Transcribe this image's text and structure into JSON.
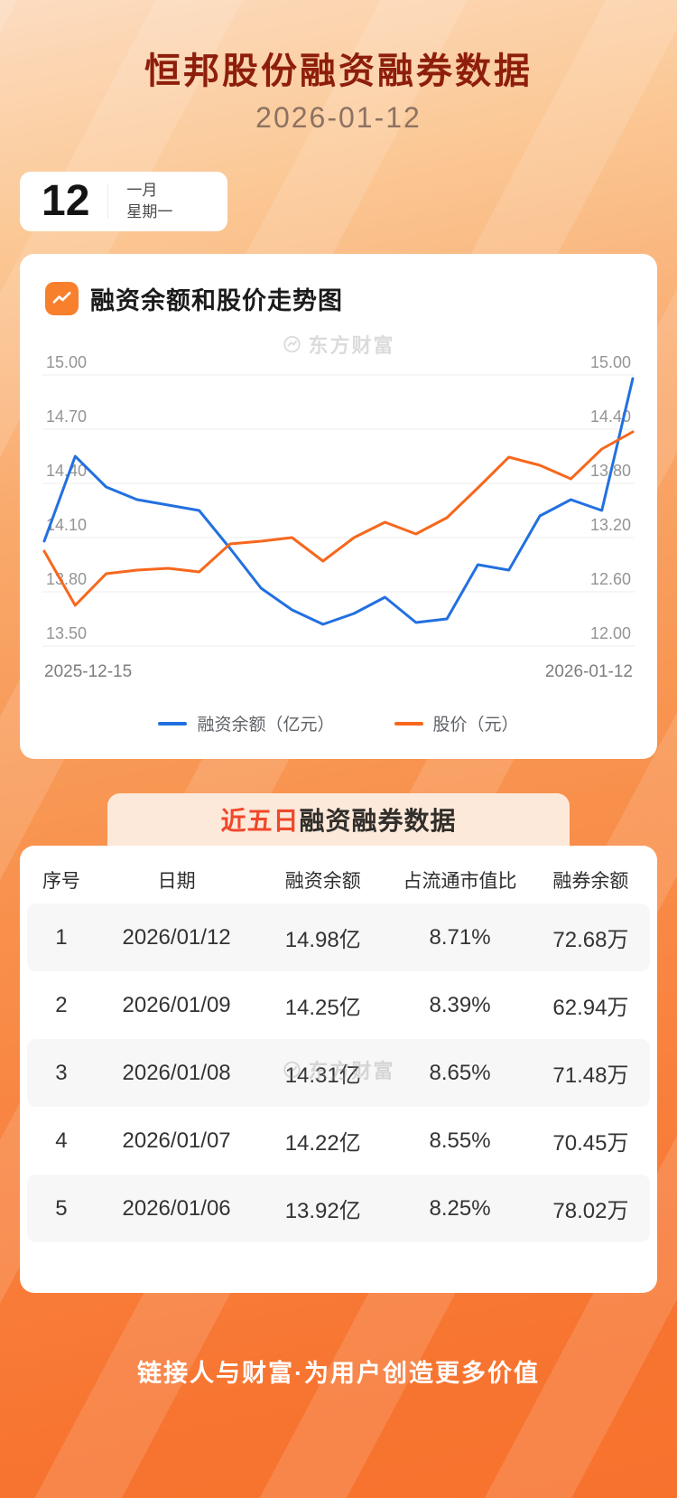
{
  "header": {
    "title": "恒邦股份融资融券数据",
    "date": "2026-01-12"
  },
  "page": {
    "watermark": "东方财富",
    "footer": "链接人与财富·为用户创造更多价值"
  },
  "calendar": {
    "day": "12",
    "month": "一月",
    "weekday": "星期一"
  },
  "chart_section": {
    "heading": "融资余额和股价走势图",
    "legend": [
      {
        "label": "融资余额（亿元）",
        "color": "#2270e0"
      },
      {
        "label": "股价（元）",
        "color": "#f7671c"
      }
    ]
  },
  "chart_data": {
    "type": "line",
    "title": "融资余额和股价走势图",
    "x_labels": [
      "2025-12-15",
      "2026-01-12"
    ],
    "grid": true,
    "legend_position": "bottom",
    "left_axis": {
      "min": 13.5,
      "max": 15.0,
      "ticks": [
        "15.00",
        "14.70",
        "14.40",
        "14.10",
        "13.80",
        "13.50"
      ]
    },
    "right_axis": {
      "min": 12.0,
      "max": 15.0,
      "ticks": [
        "15.00",
        "14.40",
        "13.80",
        "13.20",
        "12.60",
        "12.00"
      ]
    },
    "series": [
      {
        "name": "融资余额（亿元）",
        "axis": "left",
        "color": "#2270e0",
        "values": [
          14.08,
          14.55,
          14.38,
          14.31,
          14.28,
          14.25,
          14.04,
          13.82,
          13.7,
          13.62,
          13.68,
          13.77,
          13.63,
          13.65,
          13.95,
          13.92,
          14.22,
          14.31,
          14.25,
          14.98
        ]
      },
      {
        "name": "股价（元）",
        "axis": "right",
        "color": "#f7671c",
        "values": [
          13.05,
          12.45,
          12.8,
          12.84,
          12.86,
          12.82,
          13.13,
          13.16,
          13.2,
          12.94,
          13.2,
          13.37,
          13.24,
          13.42,
          13.75,
          14.09,
          14.0,
          13.85,
          14.18,
          14.37
        ]
      }
    ]
  },
  "table_section": {
    "title_highlight": "近五日",
    "title_rest": "融资融券数据",
    "columns": [
      "序号",
      "日期",
      "融资余额",
      "占流通市值比",
      "融券余额"
    ],
    "rows": [
      [
        "1",
        "2026/01/12",
        "14.98亿",
        "8.71%",
        "72.68万"
      ],
      [
        "2",
        "2026/01/09",
        "14.25亿",
        "8.39%",
        "62.94万"
      ],
      [
        "3",
        "2026/01/08",
        "14.31亿",
        "8.65%",
        "71.48万"
      ],
      [
        "4",
        "2026/01/07",
        "14.22亿",
        "8.55%",
        "70.45万"
      ],
      [
        "5",
        "2026/01/06",
        "13.92亿",
        "8.25%",
        "78.02万"
      ]
    ]
  },
  "colors": {
    "title": "#8e1e0c",
    "highlight_red": "#f0482a",
    "line_blue": "#2270e0",
    "line_orange": "#f7671c",
    "background_orange": "#f7722d",
    "banner_bg": "#fde9da"
  }
}
